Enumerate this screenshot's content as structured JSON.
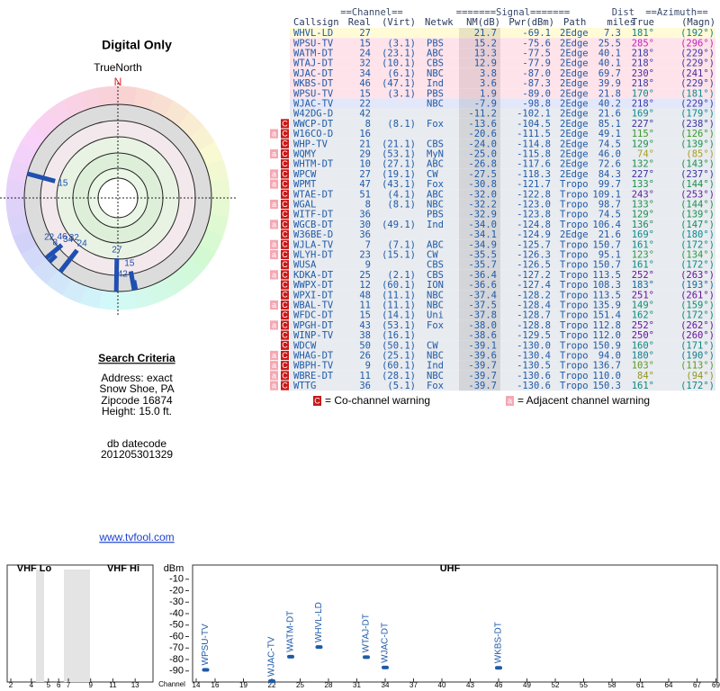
{
  "left": {
    "title": "Digital Only",
    "link": "www.tvfool.com"
  },
  "radar": {
    "title": "TrueNorth",
    "north": "N",
    "markers": [
      {
        "label": "15",
        "azimuth": 285,
        "nm": 15.2
      },
      {
        "label": "34",
        "azimuth": 230,
        "nm": 3.8
      },
      {
        "label": "24",
        "azimuth": 218,
        "nm": 13.3
      },
      {
        "label": "32",
        "azimuth": 218,
        "nm": 12.9
      },
      {
        "label": "8",
        "azimuth": 227,
        "nm": -13.6
      },
      {
        "label": "46",
        "azimuth": 218,
        "nm": 3.6
      },
      {
        "label": "22",
        "azimuth": 218,
        "nm": -7.9
      },
      {
        "label": "27",
        "azimuth": 181,
        "nm": 21.7
      },
      {
        "label": "15",
        "azimuth": 170,
        "nm": 1.9
      },
      {
        "label": "42",
        "azimuth": 169,
        "nm": -11.2
      }
    ]
  },
  "search": {
    "heading": "Search Criteria",
    "lines": [
      "Address: exact",
      "Snow Shoe, PA",
      "Zipcode 16874",
      "Height: 15.0 ft."
    ],
    "datecode_label": "db datecode",
    "datecode": "201205301329"
  },
  "table": {
    "group_headers": [
      "==Channel==",
      "=======Signal=======",
      "Dist",
      "==Azimuth=="
    ],
    "columns": [
      "Callsign",
      "Real",
      "(Virt)",
      "Netwk",
      "NM(dB)",
      "Pwr(dBm)",
      "Path",
      "miles",
      "True",
      "(Magn)"
    ],
    "rows": [
      {
        "callsign": "WHVL-LD",
        "real": "27",
        "nm": "21.7",
        "pwr": "-69.1",
        "path": "2Edge",
        "dist": "7.3",
        "true": "181°",
        "magn": "(192°)",
        "bg": "#fffbd6",
        "color": "#10808a"
      },
      {
        "callsign": "WPSU-TV",
        "real": "15",
        "virt": "(3.1)",
        "netwk": "PBS",
        "nm": "15.2",
        "pwr": "-75.6",
        "path": "2Edge",
        "dist": "25.5",
        "true": "285°",
        "magn": "(296°)",
        "bg": "#ffe3ea",
        "color": "#c020c0"
      },
      {
        "callsign": "WATM-DT",
        "real": "24",
        "virt": "(23.1)",
        "netwk": "ABC",
        "nm": "13.3",
        "pwr": "-77.5",
        "path": "2Edge",
        "dist": "40.1",
        "true": "218°",
        "magn": "(229°)",
        "bg": "#ffe3ea",
        "color": "#3838a8"
      },
      {
        "callsign": "WTAJ-DT",
        "real": "32",
        "virt": "(10.1)",
        "netwk": "CBS",
        "nm": "12.9",
        "pwr": "-77.9",
        "path": "2Edge",
        "dist": "40.1",
        "true": "218°",
        "magn": "(229°)",
        "bg": "#ffe3ea",
        "color": "#3838a8"
      },
      {
        "callsign": "WJAC-DT",
        "real": "34",
        "virt": "(6.1)",
        "netwk": "NBC",
        "nm": "3.8",
        "pwr": "-87.0",
        "path": "2Edge",
        "dist": "69.7",
        "true": "230°",
        "magn": "(241°)",
        "bg": "#ffe3ea",
        "color": "#4a2aa0"
      },
      {
        "callsign": "WKBS-DT",
        "real": "46",
        "virt": "(47.1)",
        "netwk": "Ind",
        "nm": "3.6",
        "pwr": "-87.3",
        "path": "2Edge",
        "dist": "39.9",
        "true": "218°",
        "magn": "(229°)",
        "bg": "#ffe3ea",
        "color": "#3838a8"
      },
      {
        "callsign": "WPSU-TV",
        "real": "15",
        "virt": "(3.1)",
        "netwk": "PBS",
        "nm": "1.9",
        "pwr": "-89.0",
        "path": "2Edge",
        "dist": "21.8",
        "true": "170°",
        "magn": "(181°)",
        "bg": "#ffe3ea",
        "color": "#0a8c8c"
      },
      {
        "callsign": "WJAC-TV",
        "real": "22",
        "netwk": "NBC",
        "nm": "-7.9",
        "pwr": "-98.8",
        "path": "2Edge",
        "dist": "40.2",
        "true": "218°",
        "magn": "(229°)",
        "bg": "#e3e7fa",
        "color": "#3838a8"
      },
      {
        "callsign": "W42DG-D",
        "real": "42",
        "nm": "-11.2",
        "pwr": "-102.1",
        "path": "2Edge",
        "dist": "21.6",
        "true": "169°",
        "magn": "(179°)",
        "bg": "#e8ebef",
        "color": "#0a8c8c"
      },
      {
        "callsign": "WWCP-DT",
        "real": "8",
        "virt": "(8.1)",
        "netwk": "Fox",
        "nm": "-13.6",
        "pwr": "-104.5",
        "path": "2Edge",
        "dist": "85.1",
        "true": "227°",
        "magn": "(238°)",
        "bg": "#e8ebef",
        "color": "#3a30a0",
        "warnings": [
          "C"
        ]
      },
      {
        "callsign": "W16CO-D",
        "real": "16",
        "nm": "-20.6",
        "pwr": "-111.5",
        "path": "2Edge",
        "dist": "49.1",
        "true": "115°",
        "magn": "(126°)",
        "bg": "#e8ebef",
        "color": "#3a9a2a",
        "warnings": [
          "a",
          "C"
        ]
      },
      {
        "callsign": "WHP-TV",
        "real": "21",
        "virt": "(21.1)",
        "netwk": "CBS",
        "nm": "-24.0",
        "pwr": "-114.8",
        "path": "2Edge",
        "dist": "74.5",
        "true": "129°",
        "magn": "(139°)",
        "bg": "#e8ebef",
        "color": "#1a9050",
        "warnings": [
          "C"
        ]
      },
      {
        "callsign": "WQMY",
        "real": "29",
        "virt": "(53.1)",
        "netwk": "MyN",
        "nm": "-25.0",
        "pwr": "-115.8",
        "path": "2Edge",
        "dist": "46.0",
        "true": "74°",
        "magn": "(85°)",
        "bg": "#e8ebef",
        "color": "#a8a020",
        "warnings": [
          "a",
          "C"
        ]
      },
      {
        "callsign": "WHTM-DT",
        "real": "10",
        "virt": "(27.1)",
        "netwk": "ABC",
        "nm": "-26.8",
        "pwr": "-117.6",
        "path": "2Edge",
        "dist": "72.6",
        "true": "132°",
        "magn": "(143°)",
        "bg": "#e8ebef",
        "color": "#1a9050",
        "warnings": [
          "C"
        ]
      },
      {
        "callsign": "WPCW",
        "real": "27",
        "virt": "(19.1)",
        "netwk": "CW",
        "nm": "-27.5",
        "pwr": "-118.3",
        "path": "2Edge",
        "dist": "84.3",
        "true": "227°",
        "magn": "(237°)",
        "bg": "#e8ebef",
        "color": "#3a30a0",
        "warnings": [
          "a",
          "C"
        ]
      },
      {
        "callsign": "WPMT",
        "real": "47",
        "virt": "(43.1)",
        "netwk": "Fox",
        "nm": "-30.8",
        "pwr": "-121.7",
        "path": "Tropo",
        "dist": "99.7",
        "true": "133°",
        "magn": "(144°)",
        "bg": "#e8ebef",
        "color": "#1a9050",
        "warnings": [
          "a",
          "C"
        ]
      },
      {
        "callsign": "WTAE-DT",
        "real": "51",
        "virt": "(4.1)",
        "netwk": "ABC",
        "nm": "-32.0",
        "pwr": "-122.8",
        "path": "Tropo",
        "dist": "109.1",
        "true": "243°",
        "magn": "(253°)",
        "bg": "#e8ebef",
        "color": "#5a1aa0",
        "warnings": [
          "C"
        ]
      },
      {
        "callsign": "WGAL",
        "real": "8",
        "virt": "(8.1)",
        "netwk": "NBC",
        "nm": "-32.2",
        "pwr": "-123.0",
        "path": "Tropo",
        "dist": "98.7",
        "true": "133°",
        "magn": "(144°)",
        "bg": "#e8ebef",
        "color": "#1a9050",
        "warnings": [
          "a",
          "C"
        ]
      },
      {
        "callsign": "WITF-DT",
        "real": "36",
        "netwk": "PBS",
        "nm": "-32.9",
        "pwr": "-123.8",
        "path": "Tropo",
        "dist": "74.5",
        "true": "129°",
        "magn": "(139°)",
        "bg": "#e8ebef",
        "color": "#1a9050",
        "warnings": [
          "C"
        ]
      },
      {
        "callsign": "WGCB-DT",
        "real": "30",
        "virt": "(49.1)",
        "netwk": "Ind",
        "nm": "-34.0",
        "pwr": "-124.8",
        "path": "Tropo",
        "dist": "106.4",
        "true": "136°",
        "magn": "(147°)",
        "bg": "#e8ebef",
        "color": "#1a8a60",
        "warnings": [
          "a",
          "C"
        ]
      },
      {
        "callsign": "W36BE-D",
        "real": "36",
        "nm": "-34.1",
        "pwr": "-124.9",
        "path": "2Edge",
        "dist": "21.6",
        "true": "169°",
        "magn": "(180°)",
        "bg": "#e8ebef",
        "color": "#0a8c8c",
        "warnings": [
          "C"
        ]
      },
      {
        "callsign": "WJLA-TV",
        "real": "7",
        "virt": "(7.1)",
        "netwk": "ABC",
        "nm": "-34.9",
        "pwr": "-125.7",
        "path": "Tropo",
        "dist": "150.7",
        "true": "161°",
        "magn": "(172°)",
        "bg": "#e8ebef",
        "color": "#0a8a80",
        "warnings": [
          "a",
          "C"
        ]
      },
      {
        "callsign": "WLYH-DT",
        "real": "23",
        "virt": "(15.1)",
        "netwk": "CW",
        "nm": "-35.5",
        "pwr": "-126.3",
        "path": "Tropo",
        "dist": "95.1",
        "true": "123°",
        "magn": "(134°)",
        "bg": "#e8ebef",
        "color": "#2a9a40",
        "warnings": [
          "a",
          "C"
        ]
      },
      {
        "callsign": "WUSA",
        "real": "9",
        "netwk": "CBS",
        "nm": "-35.7",
        "pwr": "-126.5",
        "path": "Tropo",
        "dist": "150.7",
        "true": "161°",
        "magn": "(172°)",
        "bg": "#e8ebef",
        "color": "#0a8a80",
        "warnings": [
          "C"
        ]
      },
      {
        "callsign": "KDKA-DT",
        "real": "25",
        "virt": "(2.1)",
        "netwk": "CBS",
        "nm": "-36.4",
        "pwr": "-127.2",
        "path": "Tropo",
        "dist": "113.5",
        "true": "252°",
        "magn": "(263°)",
        "bg": "#e8ebef",
        "color": "#6a10a0",
        "warnings": [
          "a",
          "C"
        ]
      },
      {
        "callsign": "WWPX-DT",
        "real": "12",
        "virt": "(60.1)",
        "netwk": "ION",
        "nm": "-36.6",
        "pwr": "-127.4",
        "path": "Tropo",
        "dist": "108.3",
        "true": "183°",
        "magn": "(193°)",
        "bg": "#e8ebef",
        "color": "#106a9a",
        "warnings": [
          "C"
        ]
      },
      {
        "callsign": "WPXI-DT",
        "real": "48",
        "virt": "(11.1)",
        "netwk": "NBC",
        "nm": "-37.4",
        "pwr": "-128.2",
        "path": "Tropo",
        "dist": "113.5",
        "true": "251°",
        "magn": "(261°)",
        "bg": "#e8ebef",
        "color": "#6a10a0",
        "warnings": [
          "C"
        ]
      },
      {
        "callsign": "WBAL-TV",
        "real": "11",
        "virt": "(11.1)",
        "netwk": "NBC",
        "nm": "-37.5",
        "pwr": "-128.4",
        "path": "Tropo",
        "dist": "135.9",
        "true": "149°",
        "magn": "(159°)",
        "bg": "#e8ebef",
        "color": "#0a9070",
        "warnings": [
          "a",
          "C"
        ]
      },
      {
        "callsign": "WFDC-DT",
        "real": "15",
        "virt": "(14.1)",
        "netwk": "Uni",
        "nm": "-37.8",
        "pwr": "-128.7",
        "path": "Tropo",
        "dist": "151.4",
        "true": "162°",
        "magn": "(172°)",
        "bg": "#e8ebef",
        "color": "#0a8a80",
        "warnings": [
          "C"
        ]
      },
      {
        "callsign": "WPGH-DT",
        "real": "43",
        "virt": "(53.1)",
        "netwk": "Fox",
        "nm": "-38.0",
        "pwr": "-128.8",
        "path": "Tropo",
        "dist": "112.8",
        "true": "252°",
        "magn": "(262°)",
        "bg": "#e8ebef",
        "color": "#6a10a0",
        "warnings": [
          "a",
          "C"
        ]
      },
      {
        "callsign": "WINP-TV",
        "real": "38",
        "virt": "(16.1)",
        "nm": "-38.6",
        "pwr": "-129.5",
        "path": "Tropo",
        "dist": "112.0",
        "true": "250°",
        "magn": "(260°)",
        "bg": "#e8ebef",
        "color": "#6a10a0",
        "warnings": [
          "C"
        ]
      },
      {
        "callsign": "WDCW",
        "real": "50",
        "virt": "(50.1)",
        "netwk": "CW",
        "nm": "-39.1",
        "pwr": "-130.0",
        "path": "Tropo",
        "dist": "150.9",
        "true": "160°",
        "magn": "(171°)",
        "bg": "#e8ebef",
        "color": "#0a8a80",
        "warnings": [
          "C"
        ]
      },
      {
        "callsign": "WHAG-DT",
        "real": "26",
        "virt": "(25.1)",
        "netwk": "NBC",
        "nm": "-39.6",
        "pwr": "-130.4",
        "path": "Tropo",
        "dist": "94.0",
        "true": "180°",
        "magn": "(190°)",
        "bg": "#e8ebef",
        "color": "#10808a",
        "warnings": [
          "a",
          "C"
        ]
      },
      {
        "callsign": "WBPH-TV",
        "real": "9",
        "virt": "(60.1)",
        "netwk": "Ind",
        "nm": "-39.7",
        "pwr": "-130.5",
        "path": "Tropo",
        "dist": "136.7",
        "true": "103°",
        "magn": "(113°)",
        "bg": "#e8ebef",
        "color": "#5a9a20",
        "warnings": [
          "a",
          "C"
        ]
      },
      {
        "callsign": "WBRE-DT",
        "real": "11",
        "virt": "(28.1)",
        "netwk": "NBC",
        "nm": "-39.7",
        "pwr": "-130.6",
        "path": "Tropo",
        "dist": "110.0",
        "true": "84°",
        "magn": "(94°)",
        "bg": "#e8ebef",
        "color": "#909820",
        "warnings": [
          "a",
          "C"
        ]
      },
      {
        "callsign": "WTTG",
        "real": "36",
        "virt": "(5.1)",
        "netwk": "Fox",
        "nm": "-39.7",
        "pwr": "-130.6",
        "path": "Tropo",
        "dist": "150.3",
        "true": "161°",
        "magn": "(172°)",
        "bg": "#e8ebef",
        "color": "#0a8a80",
        "warnings": [
          "a",
          "C"
        ]
      }
    ],
    "legend": [
      {
        "icon": "C",
        "text": "= Co-channel warning"
      },
      {
        "icon": "a",
        "text": "= Adjacent channel warning"
      }
    ]
  },
  "spectrum": {
    "bands": [
      "VHF Lo",
      "VHF Hi",
      "UHF"
    ],
    "y_label": "dBm",
    "x_label": "Channel",
    "ylim": [
      -100,
      0
    ],
    "yticks": [
      -10,
      -20,
      -30,
      -40,
      -50,
      -60,
      -70,
      -80,
      -90
    ],
    "vhf_ticks": [
      2,
      4,
      5,
      6,
      7,
      9,
      11,
      13
    ],
    "uhf_ticks": [
      14,
      16,
      19,
      22,
      25,
      28,
      31,
      34,
      37,
      40,
      43,
      46,
      49,
      52,
      55,
      58,
      61,
      64,
      67,
      69
    ],
    "color": "#1f5aa8",
    "stations": [
      {
        "callsign": "WPSU-TV",
        "channel": 15,
        "pwr": -89.0
      },
      {
        "callsign": "WJAC-TV",
        "channel": 22,
        "pwr": -98.8
      },
      {
        "callsign": "WATM-DT",
        "channel": 24,
        "pwr": -77.5
      },
      {
        "callsign": "WHVL-LD",
        "channel": 27,
        "pwr": -69.1
      },
      {
        "callsign": "WTAJ-DT",
        "channel": 32,
        "pwr": -77.9
      },
      {
        "callsign": "WJAC-DT",
        "channel": 34,
        "pwr": -87.0
      },
      {
        "callsign": "WKBS-DT",
        "channel": 46,
        "pwr": -87.3
      }
    ]
  }
}
